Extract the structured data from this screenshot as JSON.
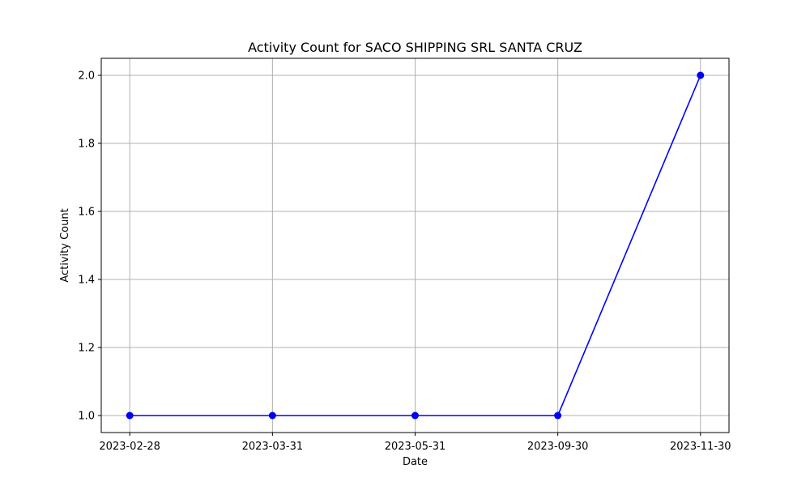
{
  "chart_data": {
    "type": "line",
    "title": "Activity Count for SACO SHIPPING SRL SANTA CRUZ",
    "xlabel": "Date",
    "ylabel": "Activity Count",
    "categories": [
      "2023-02-28",
      "2023-03-31",
      "2023-05-31",
      "2023-09-30",
      "2023-11-30"
    ],
    "values": [
      1,
      1,
      1,
      1,
      2
    ],
    "ylim": [
      0.95,
      2.05
    ],
    "yticks": [
      "1.0",
      "1.2",
      "1.4",
      "1.6",
      "1.8",
      "2.0"
    ],
    "grid": true,
    "marker": "circle",
    "line_color": "#0000ff",
    "grid_color": "#b0b0b0"
  }
}
